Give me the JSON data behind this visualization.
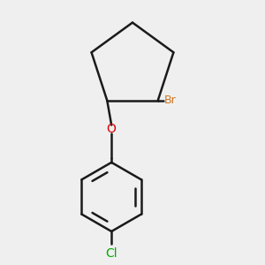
{
  "background_color": "#efefef",
  "bond_color": "#1a1a1a",
  "bond_width": 1.8,
  "br_color": "#cc7722",
  "o_color": "#dd0000",
  "cl_color": "#00aa00",
  "br_label": "Br",
  "o_label": "O",
  "cl_label": "Cl",
  "figsize": [
    3.0,
    3.0
  ],
  "dpi": 100,
  "font_size": 9
}
